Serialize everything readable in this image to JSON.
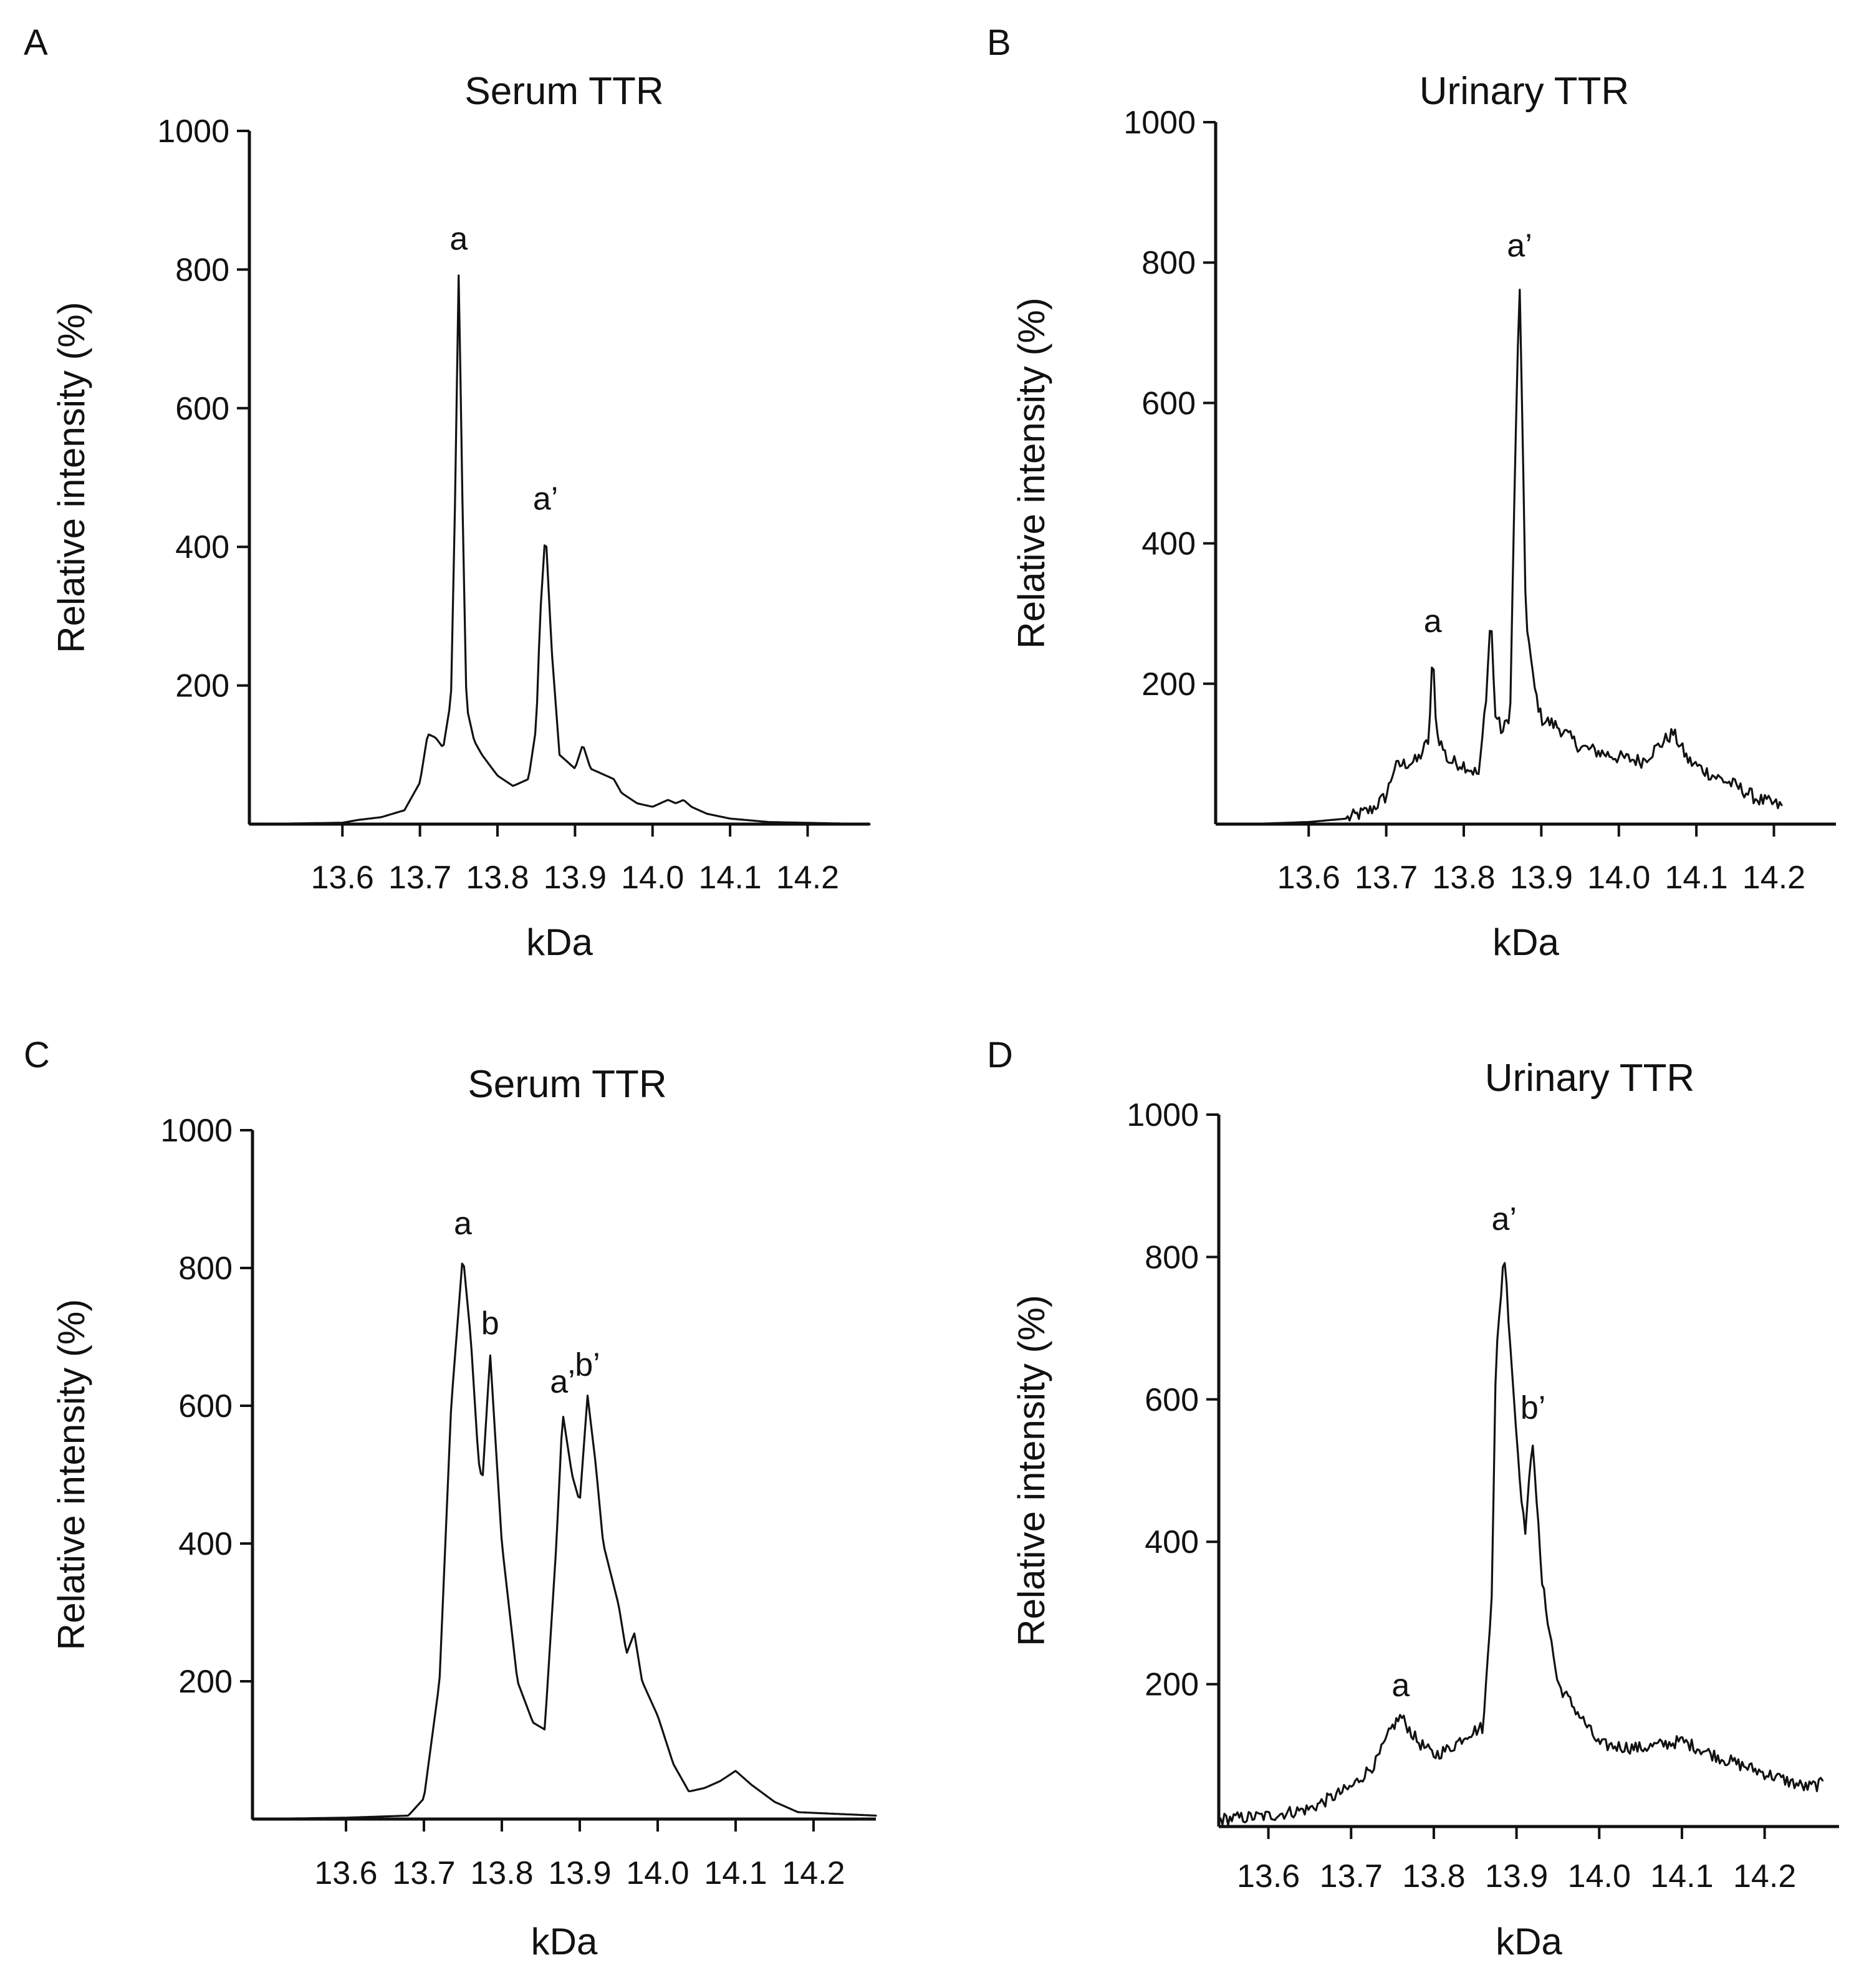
{
  "chart_data": [
    {
      "panel": "A",
      "type": "line",
      "title": "Serum TTR",
      "xlabel": "kDa",
      "ylabel": "Relative intensity (%)",
      "xlim": [
        13.48,
        14.28
      ],
      "ylim": [
        0,
        1000
      ],
      "x_ticks": [
        "13.6",
        "13.7",
        "13.8",
        "13.9",
        "14.0",
        "14.1",
        "14.2"
      ],
      "y_ticks": [
        "200",
        "400",
        "600",
        "800",
        "1000"
      ],
      "noise": 0,
      "peaks": [
        {
          "label": "a",
          "x": 13.75,
          "y": 800
        },
        {
          "label": "a’",
          "x": 13.862,
          "y": 425
        }
      ],
      "series": [
        {
          "name": "Serum TTR",
          "x": [
            13.48,
            13.6,
            13.62,
            13.65,
            13.68,
            13.7,
            13.71,
            13.72,
            13.73,
            13.74,
            13.745,
            13.75,
            13.755,
            13.76,
            13.77,
            13.78,
            13.8,
            13.82,
            13.84,
            13.85,
            13.855,
            13.862,
            13.87,
            13.88,
            13.9,
            13.91,
            13.92,
            13.94,
            13.95,
            13.96,
            13.98,
            14.0,
            14.02,
            14.03,
            14.04,
            14.05,
            14.07,
            14.1,
            14.15,
            14.28
          ],
          "values": [
            0,
            2,
            6,
            10,
            20,
            60,
            130,
            125,
            110,
            180,
            450,
            800,
            450,
            170,
            120,
            100,
            70,
            55,
            65,
            140,
            300,
            425,
            250,
            100,
            80,
            115,
            80,
            70,
            65,
            45,
            30,
            25,
            35,
            30,
            35,
            25,
            15,
            8,
            3,
            0
          ]
        }
      ]
    },
    {
      "panel": "B",
      "type": "line",
      "title": "Urinary TTR",
      "xlabel": "kDa",
      "ylabel": "Relative intensity (%)",
      "xlim": [
        13.48,
        14.28
      ],
      "ylim": [
        0,
        1000
      ],
      "x_ticks": [
        "13.6",
        "13.7",
        "13.8",
        "13.9",
        "14.0",
        "14.1",
        "14.2"
      ],
      "y_ticks": [
        "200",
        "400",
        "600",
        "800",
        "1000"
      ],
      "noise": 10,
      "peaks": [
        {
          "label": "a",
          "x": 13.76,
          "y": 245
        },
        {
          "label": "a’",
          "x": 13.872,
          "y": 780
        }
      ],
      "series": [
        {
          "name": "Urinary TTR",
          "x": [
            13.52,
            13.6,
            13.65,
            13.68,
            13.7,
            13.71,
            13.72,
            13.74,
            13.755,
            13.76,
            13.765,
            13.78,
            13.8,
            13.82,
            13.83,
            13.835,
            13.84,
            13.85,
            13.86,
            13.865,
            13.872,
            13.88,
            13.89,
            13.9,
            13.92,
            13.95,
            14.0,
            14.03,
            14.06,
            14.07,
            14.09,
            14.12,
            14.15,
            14.18,
            14.21
          ],
          "values": [
            0,
            3,
            8,
            20,
            40,
            80,
            85,
            90,
            120,
            245,
            130,
            90,
            85,
            70,
            200,
            305,
            160,
            130,
            160,
            450,
            780,
            300,
            200,
            150,
            140,
            110,
            95,
            90,
            120,
            130,
            90,
            70,
            55,
            35,
            25
          ]
        }
      ]
    },
    {
      "panel": "C",
      "type": "line",
      "title": "Serum TTR",
      "xlabel": "kDa",
      "ylabel": "Relative intensity (%)",
      "xlim": [
        13.48,
        14.28
      ],
      "ylim": [
        0,
        1000
      ],
      "x_ticks": [
        "13.6",
        "13.7",
        "13.8",
        "13.9",
        "14.0",
        "14.1",
        "14.2"
      ],
      "y_ticks": [
        "200",
        "400",
        "600",
        "800",
        "1000"
      ],
      "noise": 0,
      "peaks": [
        {
          "label": "a",
          "x": 13.75,
          "y": 820
        },
        {
          "label": "b",
          "x": 13.785,
          "y": 675
        },
        {
          "label": "a’",
          "x": 13.878,
          "y": 590
        },
        {
          "label": "b’",
          "x": 13.91,
          "y": 615
        }
      ],
      "series": [
        {
          "name": "Serum TTR",
          "x": [
            13.48,
            13.6,
            13.68,
            13.7,
            13.72,
            13.735,
            13.75,
            13.76,
            13.77,
            13.775,
            13.785,
            13.8,
            13.82,
            13.84,
            13.855,
            13.87,
            13.878,
            13.89,
            13.9,
            13.91,
            13.92,
            13.93,
            13.95,
            13.96,
            13.97,
            13.98,
            14.0,
            14.02,
            14.04,
            14.06,
            14.08,
            14.1,
            14.12,
            14.15,
            14.18,
            14.28
          ],
          "values": [
            0,
            2,
            5,
            30,
            200,
            600,
            820,
            700,
            520,
            490,
            675,
            400,
            200,
            140,
            130,
            400,
            590,
            500,
            460,
            615,
            520,
            400,
            310,
            240,
            270,
            200,
            150,
            80,
            40,
            45,
            55,
            70,
            50,
            25,
            10,
            5
          ]
        }
      ]
    },
    {
      "panel": "D",
      "type": "line",
      "title": "Urinary TTR",
      "xlabel": "kDa",
      "ylabel": "Relative intensity (%)",
      "xlim": [
        13.54,
        14.29
      ],
      "ylim": [
        0,
        1000
      ],
      "x_ticks": [
        "13.6",
        "13.7",
        "13.8",
        "13.9",
        "14.0",
        "14.1",
        "14.2"
      ],
      "y_ticks": [
        "200",
        "400",
        "600",
        "800",
        "1000"
      ],
      "noise": 9,
      "peaks": [
        {
          "label": "a",
          "x": 13.76,
          "y": 155
        },
        {
          "label": "a’",
          "x": 13.885,
          "y": 810
        },
        {
          "label": "b’",
          "x": 13.92,
          "y": 545
        }
      ],
      "series": [
        {
          "name": "Urinary TTR",
          "x": [
            13.54,
            13.6,
            13.65,
            13.7,
            13.73,
            13.75,
            13.76,
            13.78,
            13.8,
            13.82,
            13.84,
            13.86,
            13.87,
            13.875,
            13.885,
            13.9,
            13.91,
            13.92,
            13.93,
            13.95,
            13.98,
            14.0,
            14.05,
            14.1,
            14.15,
            14.2,
            14.25,
            14.27
          ],
          "values": [
            10,
            15,
            25,
            55,
            90,
            140,
            155,
            120,
            100,
            110,
            130,
            140,
            330,
            650,
            810,
            550,
            410,
            545,
            350,
            200,
            150,
            115,
            110,
            120,
            95,
            75,
            55,
            60
          ]
        }
      ]
    }
  ]
}
